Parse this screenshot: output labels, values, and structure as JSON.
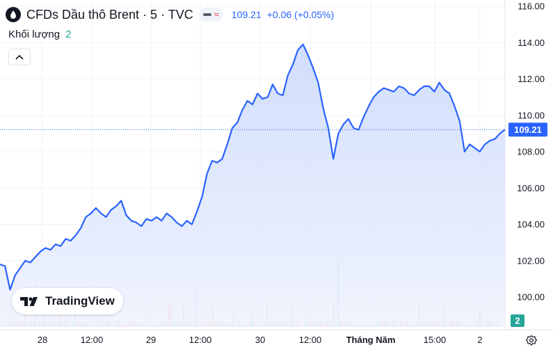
{
  "header": {
    "title": "CFDs Dầu thô Brent · 5 · TVC",
    "price": "109.21",
    "change": "+0.06 (+0.05%)",
    "symbol_icon": "oil-drop-icon",
    "status_icons": [
      "dash-icon",
      "wave-icon"
    ]
  },
  "volume": {
    "label": "Khối lượng",
    "value": "2"
  },
  "collapse_icon": "chevron-up-icon",
  "logo": {
    "text": "TradingView",
    "icon": "tradingview-logo-icon"
  },
  "settings_icon": "gear-icon",
  "colors": {
    "line": "#2962ff",
    "area_top": "#c9d8fb",
    "area_bottom": "#eef2fd",
    "grid": "#f0f3fa",
    "volume_up": "#26a69a",
    "volume_down": "#ef5350",
    "price_label_bg": "#2962ff",
    "volume_label_bg": "#26a69a"
  },
  "chart_data": {
    "type": "area",
    "y_axis": {
      "ticks": [
        "116.00",
        "114.00",
        "112.00",
        "110.00",
        "108.00",
        "106.00",
        "104.00",
        "102.00",
        "100.00"
      ],
      "range": [
        99.2,
        116.4
      ]
    },
    "x_axis": {
      "ticks": [
        "28",
        "12:00",
        "29",
        "12:00",
        "30",
        "12:00",
        "Tháng Năm",
        "15:00",
        "2"
      ],
      "range": [
        0,
        100
      ]
    },
    "last_price_label": "109.21",
    "last_price": 109.21,
    "volume_label": "2",
    "series": [
      {
        "x": [
          0,
          1,
          2,
          3,
          4,
          5,
          6,
          7,
          8,
          9,
          10,
          11,
          12,
          13,
          14,
          15,
          16,
          17,
          18,
          19,
          20,
          21,
          22,
          23,
          24,
          25,
          26,
          27,
          28,
          29,
          30,
          31,
          32,
          33,
          34,
          35,
          36,
          37,
          38,
          39,
          40,
          41,
          42,
          43,
          44,
          45,
          46,
          47,
          48,
          49,
          50,
          51,
          52,
          53,
          54,
          55,
          56,
          57,
          58,
          59,
          60,
          61,
          62,
          63,
          64,
          65,
          66,
          67,
          68,
          69,
          70,
          71,
          72,
          73,
          74,
          75,
          76,
          77,
          78,
          79,
          80,
          81,
          82,
          83,
          84,
          85,
          86,
          87,
          88,
          89,
          90,
          91,
          92,
          93,
          94,
          95,
          96,
          97,
          98,
          99,
          100
        ],
        "values": [
          101.8,
          101.7,
          100.4,
          101.2,
          101.6,
          102.0,
          101.9,
          102.2,
          102.5,
          102.7,
          102.6,
          102.9,
          102.8,
          103.2,
          103.1,
          103.4,
          103.8,
          104.4,
          104.6,
          104.9,
          104.6,
          104.4,
          104.8,
          105.0,
          105.3,
          104.5,
          104.2,
          104.1,
          103.9,
          104.3,
          104.2,
          104.4,
          104.2,
          104.6,
          104.4,
          104.1,
          103.9,
          104.2,
          104.0,
          104.7,
          105.5,
          106.8,
          107.5,
          107.4,
          107.6,
          108.4,
          109.3,
          109.6,
          110.3,
          110.8,
          110.6,
          111.2,
          110.9,
          111.0,
          111.7,
          111.2,
          111.1,
          112.2,
          112.8,
          113.6,
          113.9,
          113.3,
          112.6,
          111.8,
          110.4,
          109.3,
          107.6,
          109.0,
          109.5,
          109.8,
          109.3,
          109.2,
          109.9,
          110.5,
          111.0,
          111.3,
          111.5,
          111.4,
          111.3,
          111.6,
          111.5,
          111.2,
          111.1,
          111.4,
          111.6,
          111.6,
          111.3,
          111.8,
          111.4,
          111.2,
          110.5,
          109.7,
          108.0,
          108.4,
          108.2,
          108.0,
          108.4,
          108.6,
          108.7,
          109.0,
          109.21
        ]
      }
    ]
  }
}
